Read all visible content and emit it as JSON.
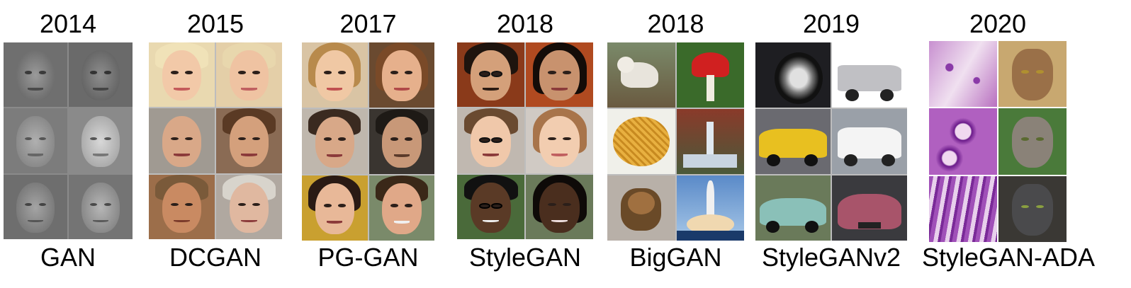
{
  "columns": [
    {
      "year": "2014",
      "name": "GAN"
    },
    {
      "year": "2015",
      "name": "DCGAN"
    },
    {
      "year": "2017",
      "name": "PG-GAN"
    },
    {
      "year": "2018",
      "name": "StyleGAN"
    },
    {
      "year": "2018",
      "name": "BigGAN"
    },
    {
      "year": "2019",
      "name": "StyleGANv2"
    },
    {
      "year": "2020",
      "name": "StyleGAN-ADA"
    }
  ]
}
